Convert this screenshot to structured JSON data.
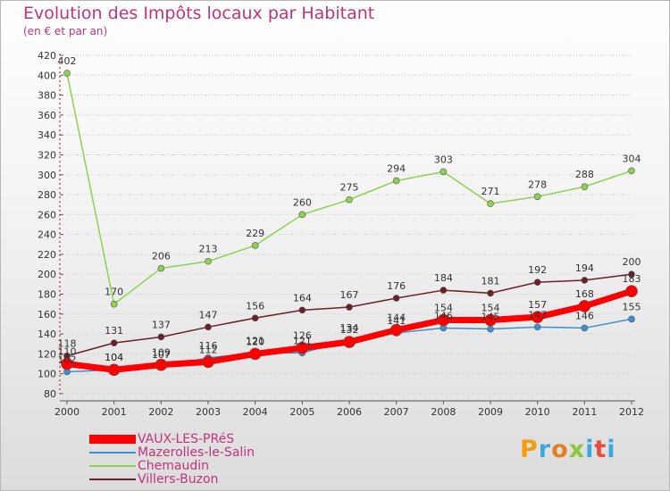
{
  "title": "Evolution des Impôts locaux par Habitant",
  "subtitle": "(en € et par an)",
  "brand": {
    "text": "Proxiti",
    "colors": [
      "#f39c12",
      "#3fa9dd",
      "#e67e22",
      "#8cc63f",
      "#3fa9dd",
      "#e74c3c",
      "#3fa9dd"
    ]
  },
  "chart_data": {
    "type": "line",
    "title": "Evolution des Impôts locaux par Habitant",
    "subtitle": "(en € et par an)",
    "xlabel": "",
    "ylabel": "",
    "ylim": [
      80,
      420
    ],
    "y_ticks": [
      80,
      100,
      120,
      140,
      160,
      180,
      200,
      220,
      240,
      260,
      280,
      300,
      320,
      340,
      360,
      380,
      400,
      420
    ],
    "categories": [
      "2000",
      "2001",
      "2002",
      "2003",
      "2004",
      "2005",
      "2006",
      "2007",
      "2008",
      "2009",
      "2010",
      "2011",
      "2012"
    ],
    "legend_position": "bottom-left",
    "series": [
      {
        "name": "Villers-Buzon",
        "color": "#6b1f2a",
        "values": [
          118,
          131,
          137,
          147,
          156,
          164,
          167,
          176,
          184,
          181,
          192,
          194,
          200
        ]
      },
      {
        "name": "Chemaudin",
        "color": "#8fd14f",
        "values": [
          402,
          170,
          206,
          213,
          229,
          260,
          275,
          294,
          303,
          271,
          278,
          288,
          304
        ]
      },
      {
        "name": "Mazerolles-le-Salin",
        "color": "#3d8fd0",
        "values": [
          102,
          104,
          107,
          116,
          121,
          121,
          134,
          141,
          146,
          145,
          147,
          146,
          155
        ]
      },
      {
        "name": "VAUX-LES-PRéS",
        "color": "#ff0000",
        "values": [
          110,
          104,
          109,
          112,
          120,
          126,
          132,
          144,
          154,
          154,
          157,
          168,
          183
        ]
      }
    ],
    "legend_order": [
      "VAUX-LES-PRéS",
      "Mazerolles-le-Salin",
      "Chemaudin",
      "Villers-Buzon"
    ]
  }
}
